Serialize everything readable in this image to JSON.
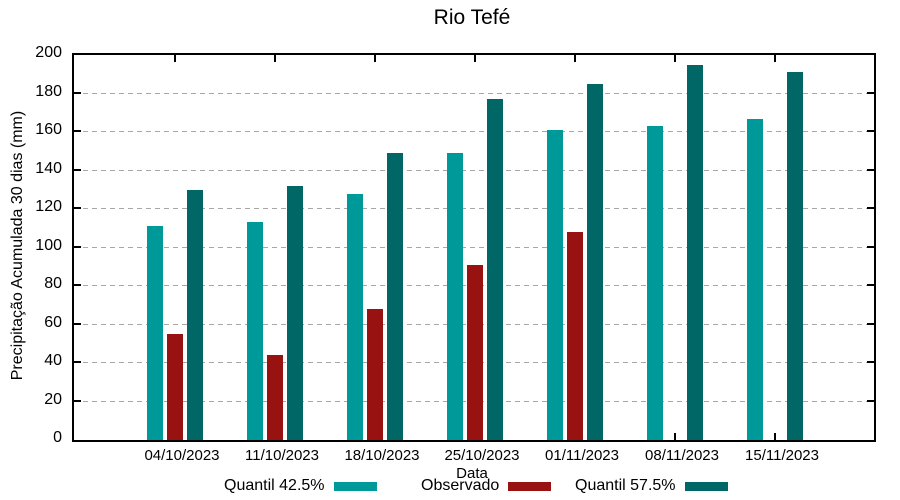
{
  "chart_data": {
    "type": "bar",
    "title": "Rio Tefé",
    "xlabel": "Data",
    "ylabel": "Precipitação Acumulada 30 dias (mm)",
    "categories": [
      "04/10/2023",
      "11/10/2023",
      "18/10/2023",
      "25/10/2023",
      "01/11/2023",
      "08/11/2023",
      "15/11/2023"
    ],
    "series": [
      {
        "name": "Quantil 42.5%",
        "color": "#009999",
        "values": [
          111,
          113,
          128,
          149,
          161,
          163,
          167
        ]
      },
      {
        "name": "Observado",
        "color": "#981212",
        "values": [
          55,
          44,
          68,
          91,
          108,
          null,
          null
        ]
      },
      {
        "name": "Quantil 57.5%",
        "color": "#006666",
        "values": [
          130,
          132,
          149,
          177,
          185,
          195,
          191
        ]
      }
    ],
    "ylim": [
      0,
      200
    ],
    "yticks": [
      0,
      20,
      40,
      60,
      80,
      100,
      120,
      140,
      160,
      180,
      200
    ],
    "grid": "horizontal-dashed",
    "grid_color": "#a8a8a8",
    "border_color": "#000000",
    "legend_position": "bottom"
  }
}
